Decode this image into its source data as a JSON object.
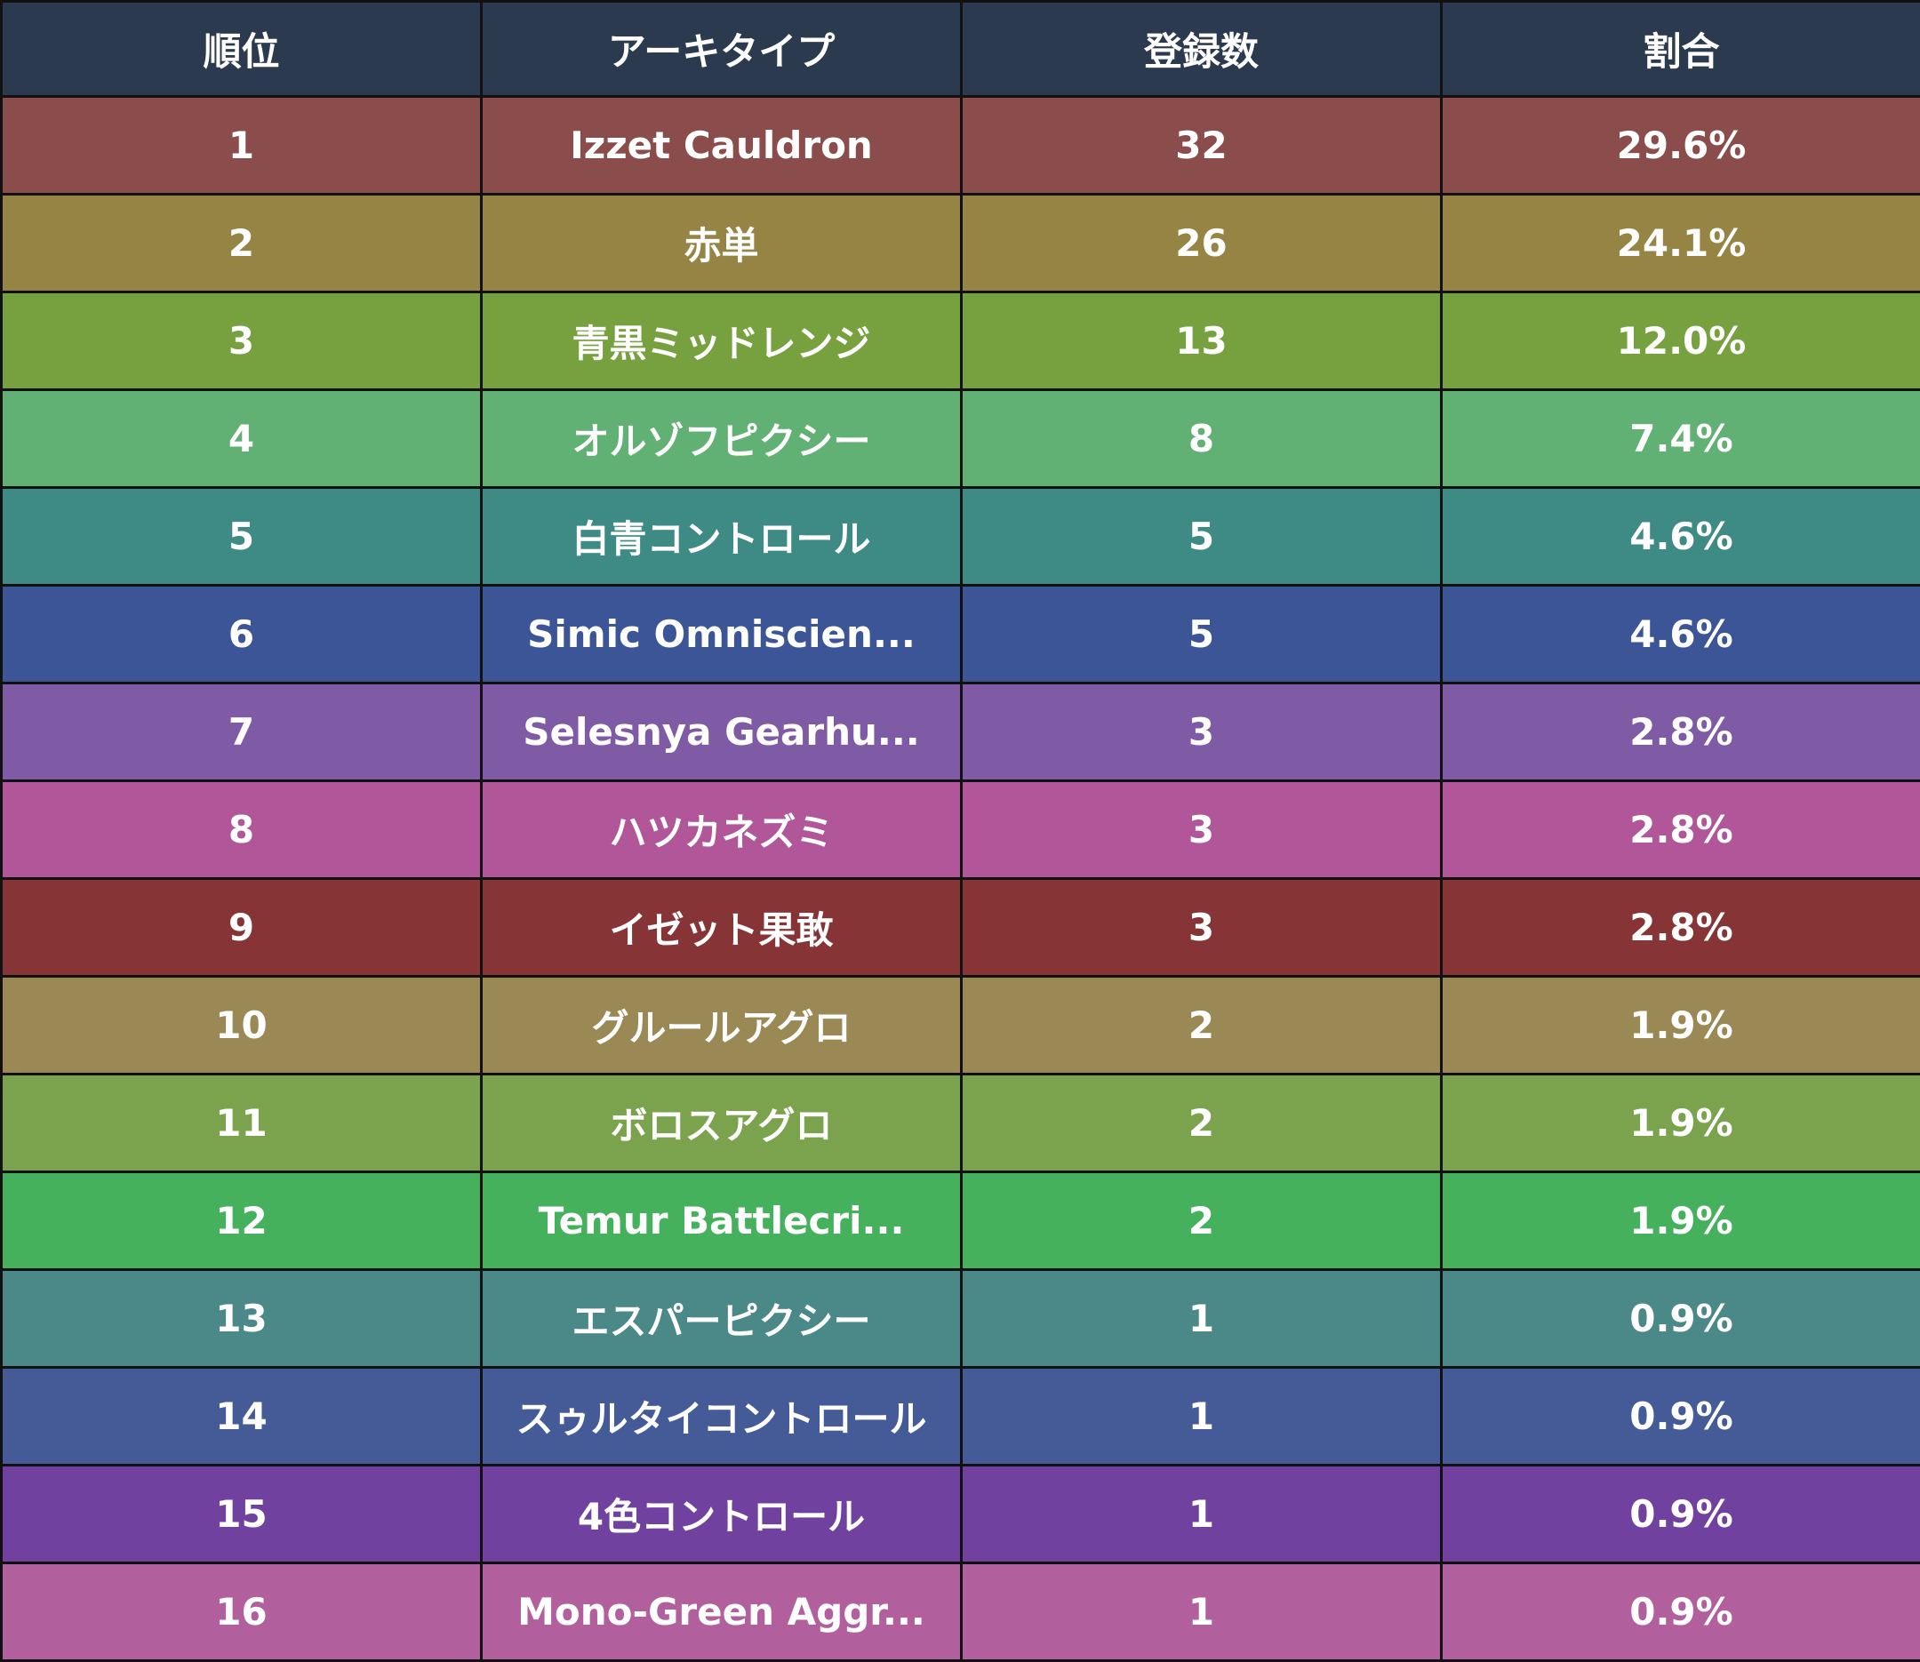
{
  "chart_data": {
    "type": "table",
    "columns": [
      "順位",
      "アーキタイプ",
      "登録数",
      "割合"
    ],
    "header_color": "#2b3a4e",
    "rows": [
      {
        "rank": "1",
        "archetype": "Izzet Cauldron",
        "count": 32,
        "share": "29.6%",
        "color": "#8b4c4c"
      },
      {
        "rank": "2",
        "archetype": "赤単",
        "count": 26,
        "share": "24.1%",
        "color": "#968444"
      },
      {
        "rank": "3",
        "archetype": "青黒ミッドレンジ",
        "count": 13,
        "share": "12.0%",
        "color": "#77a03f"
      },
      {
        "rank": "4",
        "archetype": "オルゾフピクシー",
        "count": 8,
        "share": "7.4%",
        "color": "#61b074"
      },
      {
        "rank": "5",
        "archetype": "白青コントロール",
        "count": 5,
        "share": "4.6%",
        "color": "#3e8a84"
      },
      {
        "rank": "6",
        "archetype": "Simic Omniscien...",
        "count": 5,
        "share": "4.6%",
        "color": "#3b5596"
      },
      {
        "rank": "7",
        "archetype": "Selesnya Gearhu...",
        "count": 3,
        "share": "2.8%",
        "color": "#7f5ba6"
      },
      {
        "rank": "8",
        "archetype": "ハツカネズミ",
        "count": 3,
        "share": "2.8%",
        "color": "#b15699"
      },
      {
        "rank": "9",
        "archetype": "イゼット果敢",
        "count": 3,
        "share": "2.8%",
        "color": "#873437"
      },
      {
        "rank": "10",
        "archetype": "グルールアグロ",
        "count": 2,
        "share": "1.9%",
        "color": "#9a8855"
      },
      {
        "rank": "11",
        "archetype": "ボロスアグロ",
        "count": 2,
        "share": "1.9%",
        "color": "#7ba34e"
      },
      {
        "rank": "12",
        "archetype": "Temur Battlecri...",
        "count": 2,
        "share": "1.9%",
        "color": "#45b15c"
      },
      {
        "rank": "13",
        "archetype": "エスパーピクシー",
        "count": 1,
        "share": "0.9%",
        "color": "#4a8987"
      },
      {
        "rank": "14",
        "archetype": "スゥルタイコントロール",
        "count": 1,
        "share": "0.9%",
        "color": "#455b98"
      },
      {
        "rank": "15",
        "archetype": "4色コントロール",
        "count": 1,
        "share": "0.9%",
        "color": "#7141a0"
      },
      {
        "rank": "16",
        "archetype": "Mono-Green Aggr...",
        "count": 1,
        "share": "0.9%",
        "color": "#b1609d"
      }
    ]
  }
}
